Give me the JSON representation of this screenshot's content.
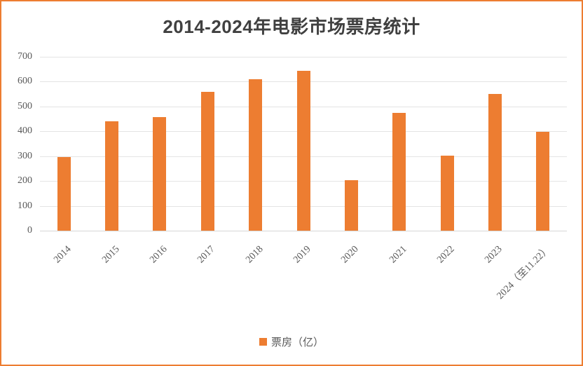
{
  "chart_data": {
    "type": "bar",
    "title": "2014-2024年电影市场票房统计",
    "categories": [
      "2014",
      "2015",
      "2016",
      "2017",
      "2018",
      "2019",
      "2020",
      "2021",
      "2022",
      "2023",
      "2024（至11.22）"
    ],
    "values": [
      296,
      441,
      457,
      559,
      610,
      643,
      204,
      473,
      301,
      549,
      397
    ],
    "series_name": "票房（亿）",
    "xlabel": "",
    "ylabel": "",
    "ylim": [
      0,
      700
    ],
    "yticks": [
      0,
      100,
      200,
      300,
      400,
      500,
      600,
      700
    ],
    "grid": true,
    "legend_position": "bottom",
    "colors": {
      "bar": "#ED7D31",
      "frame_border": "#ED7D31",
      "gridline": "#E4E4E4",
      "axis_line": "#D6D6D6",
      "tick_label": "#595959",
      "title": "#404040"
    }
  },
  "legend": {
    "label": "票房（亿）"
  }
}
